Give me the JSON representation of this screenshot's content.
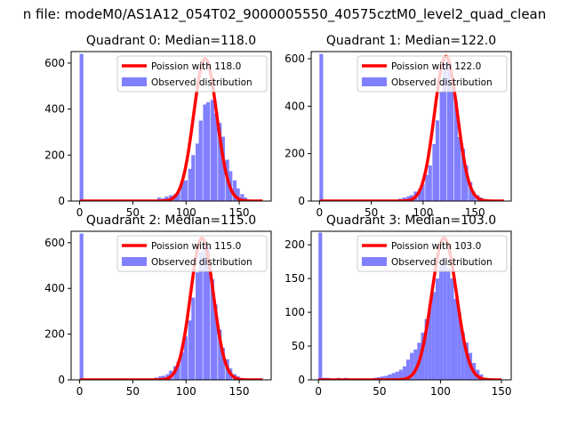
{
  "figure": {
    "suptitle": "n file: modeM0/AS1A12_054T02_9000005550_40575cztM0_level2_quad_clean"
  },
  "colors": {
    "fit_line": "#ff0000",
    "observed": "#8080ff",
    "background": "#ffffff",
    "axes": "#000000"
  },
  "chart_data": [
    {
      "type": "bar",
      "panel": "Quadrant 0",
      "title": "Quadrant 0: Median=118.0",
      "xlim": [
        -8,
        180
      ],
      "ylim": [
        0,
        650
      ],
      "xticks": [
        0,
        50,
        100,
        150
      ],
      "yticks": [
        0,
        200,
        400,
        600
      ],
      "bin_width": 3.5,
      "legend_position": "top-right",
      "series": [
        {
          "name": "Poission with 118.0",
          "kind": "line",
          "mean": 118.0,
          "peak": 620,
          "x_range": [
            0,
            172
          ]
        },
        {
          "name": "Observed distribution",
          "kind": "histogram",
          "bins": [
            [
              0,
              640
            ],
            [
              73,
              15
            ],
            [
              77,
              12
            ],
            [
              80,
              20
            ],
            [
              84,
              25
            ],
            [
              88,
              30
            ],
            [
              91,
              40
            ],
            [
              95,
              80
            ],
            [
              98,
              90
            ],
            [
              102,
              140
            ],
            [
              105,
              200
            ],
            [
              109,
              250
            ],
            [
              112,
              350
            ],
            [
              116,
              420
            ],
            [
              119,
              430
            ],
            [
              123,
              440
            ],
            [
              126,
              380
            ],
            [
              130,
              340
            ],
            [
              133,
              280
            ],
            [
              137,
              180
            ],
            [
              140,
              130
            ],
            [
              144,
              90
            ],
            [
              147,
              55
            ],
            [
              151,
              30
            ],
            [
              154,
              15
            ]
          ]
        }
      ]
    },
    {
      "type": "bar",
      "panel": "Quadrant 1",
      "title": "Quadrant 1: Median=122.0",
      "xlim": [
        -8,
        185
      ],
      "ylim": [
        0,
        630
      ],
      "xticks": [
        0,
        50,
        100,
        150
      ],
      "yticks": [
        0,
        200,
        400,
        600
      ],
      "bin_width": 3.5,
      "legend_position": "top-right",
      "series": [
        {
          "name": "Poission with 122.0",
          "kind": "line",
          "mean": 122.0,
          "peak": 610,
          "x_range": [
            0,
            178
          ]
        },
        {
          "name": "Observed distribution",
          "kind": "histogram",
          "bins": [
            [
              0,
              620
            ],
            [
              76,
              10
            ],
            [
              80,
              15
            ],
            [
              84,
              20
            ],
            [
              87,
              25
            ],
            [
              91,
              40
            ],
            [
              95,
              50
            ],
            [
              98,
              70
            ],
            [
              102,
              110
            ],
            [
              105,
              150
            ],
            [
              109,
              240
            ],
            [
              112,
              340
            ],
            [
              116,
              460
            ],
            [
              119,
              580
            ],
            [
              123,
              600
            ],
            [
              126,
              480
            ],
            [
              130,
              420
            ],
            [
              133,
              270
            ],
            [
              137,
              220
            ],
            [
              140,
              150
            ],
            [
              144,
              80
            ],
            [
              147,
              40
            ],
            [
              151,
              25
            ],
            [
              154,
              15
            ]
          ]
        }
      ]
    },
    {
      "type": "bar",
      "panel": "Quadrant 2",
      "title": "Quadrant 2: Median=115.0",
      "xlim": [
        -8,
        180
      ],
      "ylim": [
        0,
        650
      ],
      "xticks": [
        0,
        50,
        100,
        150
      ],
      "yticks": [
        0,
        200,
        400,
        600
      ],
      "bin_width": 3.5,
      "legend_position": "top-right",
      "series": [
        {
          "name": "Poission with 115.0",
          "kind": "line",
          "mean": 115.0,
          "peak": 620,
          "x_range": [
            0,
            172
          ]
        },
        {
          "name": "Observed distribution",
          "kind": "histogram",
          "bins": [
            [
              0,
              640
            ],
            [
              70,
              10
            ],
            [
              74,
              15
            ],
            [
              77,
              18
            ],
            [
              81,
              25
            ],
            [
              84,
              40
            ],
            [
              88,
              60
            ],
            [
              91,
              80
            ],
            [
              95,
              120
            ],
            [
              98,
              190
            ],
            [
              102,
              260
            ],
            [
              105,
              360
            ],
            [
              109,
              470
            ],
            [
              112,
              560
            ],
            [
              116,
              600
            ],
            [
              119,
              580
            ],
            [
              123,
              440
            ],
            [
              126,
              330
            ],
            [
              130,
              220
            ],
            [
              133,
              140
            ],
            [
              137,
              90
            ],
            [
              140,
              50
            ],
            [
              144,
              25
            ],
            [
              147,
              15
            ]
          ]
        }
      ]
    },
    {
      "type": "bar",
      "panel": "Quadrant 3",
      "title": "Quadrant 3: Median=103.0",
      "xlim": [
        -6,
        158
      ],
      "ylim": [
        0,
        220
      ],
      "xticks": [
        0,
        50,
        100,
        150
      ],
      "yticks": [
        0,
        50,
        100,
        150,
        200
      ],
      "bin_width": 3.0,
      "legend_position": "top-right",
      "series": [
        {
          "name": "Poission with 103.0",
          "kind": "line",
          "mean": 103.0,
          "peak": 210,
          "x_range": [
            0,
            150
          ]
        },
        {
          "name": "Observed distribution",
          "kind": "histogram",
          "bins": [
            [
              0,
              218
            ],
            [
              3,
              3
            ],
            [
              6,
              3
            ],
            [
              9,
              2
            ],
            [
              12,
              2
            ],
            [
              15,
              3
            ],
            [
              18,
              2
            ],
            [
              21,
              3
            ],
            [
              24,
              2
            ],
            [
              27,
              2
            ],
            [
              30,
              2
            ],
            [
              33,
              2
            ],
            [
              36,
              1
            ],
            [
              39,
              2
            ],
            [
              42,
              2
            ],
            [
              45,
              3
            ],
            [
              48,
              4
            ],
            [
              51,
              5
            ],
            [
              54,
              6
            ],
            [
              57,
              8
            ],
            [
              60,
              10
            ],
            [
              63,
              12
            ],
            [
              66,
              15
            ],
            [
              69,
              20
            ],
            [
              72,
              30
            ],
            [
              75,
              40
            ],
            [
              78,
              45
            ],
            [
              81,
              55
            ],
            [
              84,
              70
            ],
            [
              87,
              90
            ],
            [
              90,
              110
            ],
            [
              93,
              130
            ],
            [
              96,
              150
            ],
            [
              99,
              170
            ],
            [
              102,
              180
            ],
            [
              105,
              165
            ],
            [
              108,
              150
            ],
            [
              111,
              120
            ],
            [
              114,
              100
            ],
            [
              117,
              70
            ],
            [
              120,
              55
            ],
            [
              123,
              40
            ],
            [
              126,
              25
            ],
            [
              129,
              15
            ],
            [
              132,
              8
            ]
          ]
        }
      ]
    }
  ]
}
